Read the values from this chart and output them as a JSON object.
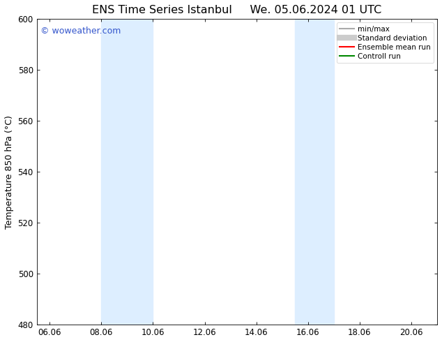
{
  "title_left": "ENS Time Series Istanbul",
  "title_right": "We. 05.06.2024 01 UTC",
  "ylabel": "Temperature 850 hPa (°C)",
  "ylim": [
    480,
    600
  ],
  "yticks": [
    480,
    500,
    520,
    540,
    560,
    580,
    600
  ],
  "xlim_start": 5.5,
  "xlim_end": 21.0,
  "xtick_labels": [
    "06.06",
    "08.06",
    "10.06",
    "12.06",
    "14.06",
    "16.06",
    "18.06",
    "20.06"
  ],
  "xtick_positions": [
    6.0,
    8.0,
    10.0,
    12.0,
    14.0,
    16.0,
    18.0,
    20.0
  ],
  "shaded_bands": [
    {
      "x_start": 8.0,
      "x_end": 10.0
    },
    {
      "x_start": 15.5,
      "x_end": 17.0
    }
  ],
  "shaded_color": "#ddeeff",
  "background_color": "#ffffff",
  "plot_bg_color": "#ffffff",
  "watermark_text": "© woweather.com",
  "watermark_color": "#3355cc",
  "legend_items": [
    {
      "label": "min/max",
      "color": "#aaaaaa",
      "lw": 1.5,
      "style": "solid"
    },
    {
      "label": "Standard deviation",
      "color": "#cccccc",
      "lw": 6,
      "style": "solid"
    },
    {
      "label": "Ensemble mean run",
      "color": "#ff0000",
      "lw": 1.5,
      "style": "solid"
    },
    {
      "label": "Controll run",
      "color": "#008800",
      "lw": 1.5,
      "style": "solid"
    }
  ],
  "title_fontsize": 11.5,
  "axis_fontsize": 9,
  "tick_fontsize": 8.5,
  "watermark_fontsize": 9,
  "legend_fontsize": 7.5
}
